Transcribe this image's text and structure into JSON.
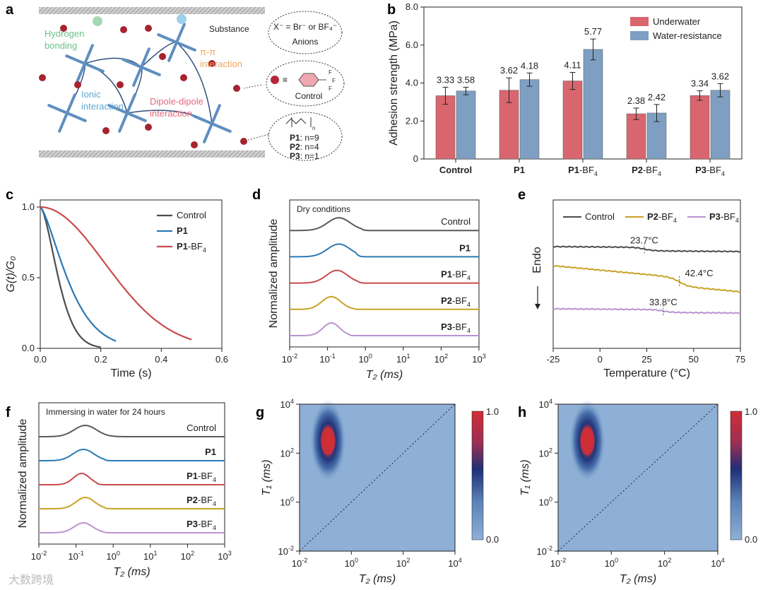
{
  "panels": {
    "a": "a",
    "b": "b",
    "c": "c",
    "d": "d",
    "e": "e",
    "f": "f",
    "g": "g",
    "h": "h"
  },
  "schematic": {
    "substance": "Substance",
    "hbond": [
      "Hydrogen",
      "bonding"
    ],
    "pipi": [
      "π-π",
      "interaction"
    ],
    "ionic": [
      "Ionic",
      "interaction"
    ],
    "dipole": [
      "Dipole-dipole",
      "interaction"
    ],
    "anion_formula": "X⁻ = Br⁻ or BF₄⁻",
    "anions": "Anions",
    "control": "Control",
    "equiv": "≡",
    "f_atom": "F",
    "n_sub": "n",
    "variants": [
      {
        "name": "P1",
        "n": ": n=9"
      },
      {
        "name": "P2",
        "n": ": n=4"
      },
      {
        "name": "P3",
        "n": ": n=1"
      }
    ]
  },
  "chart_data": [
    {
      "id": "b",
      "type": "bar",
      "ylabel": "Adhesion strength (MPa)",
      "ylim": [
        0,
        8
      ],
      "yticks": [
        "0",
        "2.0",
        "4.0",
        "6.0",
        "8.0"
      ],
      "categories": [
        "Control",
        "P1",
        "P1-BF4",
        "P2-BF4",
        "P3-BF4"
      ],
      "cat_labels": [
        {
          "bold": "Control",
          "rest": "",
          "sub": ""
        },
        {
          "bold": "P1",
          "rest": "",
          "sub": ""
        },
        {
          "bold": "P1",
          "rest": "-BF",
          "sub": "4"
        },
        {
          "bold": "P2",
          "rest": "-BF",
          "sub": "4"
        },
        {
          "bold": "P3",
          "rest": "-BF",
          "sub": "4"
        }
      ],
      "series": [
        {
          "name": "Underwater",
          "color": "#d9666f",
          "values": [
            3.33,
            3.62,
            4.11,
            2.38,
            3.34
          ],
          "labels": [
            "3.33",
            "3.62",
            "4.11",
            "2.38",
            "3.34"
          ],
          "err": [
            0.45,
            0.65,
            0.45,
            0.3,
            0.25
          ]
        },
        {
          "name": "Water-resistance",
          "color": "#7f9fc2",
          "values": [
            3.58,
            4.18,
            5.77,
            2.42,
            3.62
          ],
          "labels": [
            "3.58",
            "4.18",
            "5.77",
            "2.42",
            "3.62"
          ],
          "err": [
            0.2,
            0.35,
            0.55,
            0.45,
            0.35
          ]
        }
      ]
    },
    {
      "id": "c",
      "type": "line",
      "xlabel": "Time (s)",
      "ylabel": "G(t)/G₀",
      "xlim": [
        0,
        0.6
      ],
      "ylim": [
        0,
        1.05
      ],
      "xticks": [
        "0.0",
        "0.2",
        "0.4",
        "0.6"
      ],
      "yticks": [
        "0.0",
        "0.5",
        "1.0"
      ],
      "series": [
        {
          "name": "Control",
          "color": "#4d4d4d",
          "tau": 0.075,
          "beta": 1.6,
          "tmax": 0.2
        },
        {
          "name": "P1",
          "color": "#2a79b5",
          "tau": 0.115,
          "beta": 1.4,
          "tmax": 0.25
        },
        {
          "name": "P1-BF4",
          "color": "#c94a4d",
          "tau": 0.3,
          "beta": 2.0,
          "tmax": 0.5
        }
      ],
      "legend": [
        {
          "bold": "",
          "rest": "Control",
          "sub": ""
        },
        {
          "bold": "P1",
          "rest": "",
          "sub": ""
        },
        {
          "bold": "P1",
          "rest": "-BF",
          "sub": "4"
        }
      ]
    },
    {
      "id": "d",
      "type": "line",
      "title": "Dry conditions",
      "xlabel": "T₂ (ms)",
      "ylabel": "Normalized amplitude",
      "xlim_log": [
        -2,
        3
      ],
      "xtick_base": "10",
      "xtick_exp": [
        "-2",
        "-1",
        "0",
        "1",
        "2",
        "3"
      ],
      "series": [
        {
          "name": "Control",
          "color": "#5a5a5a",
          "peak": -0.7,
          "width": 0.3,
          "amp": 18,
          "cutoff": -0.1
        },
        {
          "name": "P1",
          "color": "#2a79b5",
          "peak": -0.7,
          "width": 0.3,
          "amp": 18,
          "cutoff": -0.25
        },
        {
          "name": "P1-BF4",
          "color": "#c94a4d",
          "peak": -0.75,
          "width": 0.28,
          "amp": 18,
          "cutoff": -0.2
        },
        {
          "name": "P2-BF4",
          "color": "#c9a227",
          "peak": -0.9,
          "width": 0.25,
          "amp": 18,
          "cutoff": -0.3
        },
        {
          "name": "P3-BF4",
          "color": "#b993cf",
          "peak": -0.9,
          "width": 0.22,
          "amp": 18,
          "cutoff": -0.45
        }
      ],
      "labels": [
        {
          "bold": "",
          "rest": "Control",
          "sub": ""
        },
        {
          "bold": "P1",
          "rest": "",
          "sub": ""
        },
        {
          "bold": "P1",
          "rest": "-BF",
          "sub": "4"
        },
        {
          "bold": "P2",
          "rest": "-BF",
          "sub": "4"
        },
        {
          "bold": "P3",
          "rest": "-BF",
          "sub": "4"
        }
      ]
    },
    {
      "id": "e",
      "type": "line",
      "xlabel": "Temperature (°C)",
      "ylabel": "Endo",
      "xlim": [
        -25,
        75
      ],
      "xticks": [
        "-25",
        "0",
        "25",
        "50",
        "75"
      ],
      "series": [
        {
          "name": "Control",
          "color": "#4d4d4d",
          "tg": 23.7,
          "label": "23.7°C"
        },
        {
          "name": "P2-BF4",
          "color": "#c9a227",
          "tg": 42.4,
          "label": "42.4°C"
        },
        {
          "name": "P3-BF4",
          "color": "#b993cf",
          "tg": 33.8,
          "label": "33.8°C"
        }
      ],
      "legend": [
        {
          "bold": "",
          "rest": "Control",
          "sub": ""
        },
        {
          "bold": "P2",
          "rest": "-BF",
          "sub": "4"
        },
        {
          "bold": "P3",
          "rest": "-BF",
          "sub": "4"
        }
      ]
    },
    {
      "id": "f",
      "type": "line",
      "title": "Immersing in water for 24 hours",
      "xlabel": "T₂ (ms)",
      "ylabel": "Normalized amplitude",
      "xlim_log": [
        -2,
        3
      ],
      "xtick_base": "10",
      "xtick_exp": [
        "-2",
        "-1",
        "0",
        "1",
        "2",
        "3"
      ],
      "series": [
        {
          "name": "Control",
          "color": "#5a5a5a",
          "peak": -0.75,
          "width": 0.3,
          "amp": 16,
          "cutoff": 0.25
        },
        {
          "name": "P1",
          "color": "#2a79b5",
          "peak": -0.8,
          "width": 0.28,
          "amp": 16,
          "cutoff": -0.25
        },
        {
          "name": "P1-BF4",
          "color": "#c94a4d",
          "peak": -0.85,
          "width": 0.22,
          "amp": 16,
          "cutoff": -0.45
        },
        {
          "name": "P2-BF4",
          "color": "#c9a227",
          "peak": -0.75,
          "width": 0.25,
          "amp": 16,
          "cutoff": -0.25
        },
        {
          "name": "P3-BF4",
          "color": "#b993cf",
          "peak": -0.8,
          "width": 0.25,
          "amp": 14,
          "cutoff": -0.25
        }
      ],
      "labels": [
        {
          "bold": "",
          "rest": "Control",
          "sub": ""
        },
        {
          "bold": "P1",
          "rest": "",
          "sub": ""
        },
        {
          "bold": "P1",
          "rest": "-BF",
          "sub": "4"
        },
        {
          "bold": "P2",
          "rest": "-BF",
          "sub": "4"
        },
        {
          "bold": "P3",
          "rest": "-BF",
          "sub": "4"
        }
      ]
    },
    {
      "id": "g",
      "type": "heatmap",
      "xlabel": "T₂ (ms)",
      "ylabel": "T₁ (ms)",
      "xlim_log": [
        -2,
        4
      ],
      "ylim_log": [
        -2,
        4
      ],
      "xtick_exp": [
        "-2",
        "0",
        "2",
        "4"
      ],
      "ytick_exp": [
        "-2",
        "0",
        "2",
        "4"
      ],
      "peak_log": [
        -0.9,
        2.5
      ],
      "colorbar": [
        "1.0",
        "0.0"
      ]
    },
    {
      "id": "h",
      "type": "heatmap",
      "xlabel": "T₂ (ms)",
      "ylabel": "T₁ (ms)",
      "xlim_log": [
        -2,
        4
      ],
      "ylim_log": [
        -2,
        4
      ],
      "xtick_exp": [
        "-2",
        "0",
        "2",
        "4"
      ],
      "ytick_exp": [
        "-2",
        "0",
        "2",
        "4"
      ],
      "peak_log": [
        -0.9,
        2.5
      ],
      "colorbar": [
        "1.0",
        "0.0"
      ]
    }
  ],
  "watermark": "大数跨境"
}
